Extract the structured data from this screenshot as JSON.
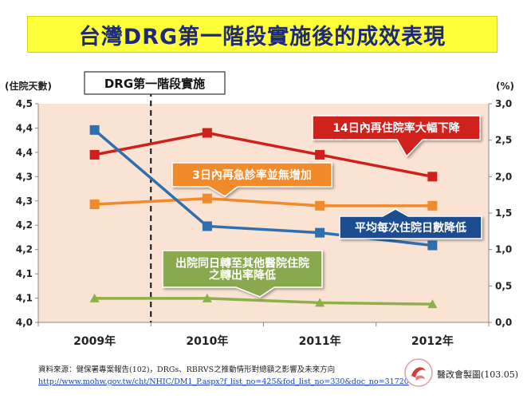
{
  "title": "台灣DRG第一階段實施後的成效表現",
  "annotation_drg": "DRG第一階段實施",
  "callouts": {
    "readmit14": "14日內再住院率大幅下降",
    "er3": "3日內再急診率並無增加",
    "los": "平均每次住院日數降低",
    "transfer_line1": "出院同日轉至其他醫院住院",
    "transfer_line2": "之轉出率降低"
  },
  "source": {
    "text": "資料來源：健保署專案報告(102)，DRGs、RBRVS之推動情形對總額之影響及未來方向",
    "url": "http://www.mohw.gov.tw/cht/NHIC/DM1_P.aspx?f_list_no=425&fod_list_no=330&doc_no=31720"
  },
  "credit": "醫改會製圖(103.05)",
  "chart_data": {
    "type": "line",
    "categories": [
      "2009年",
      "2010年",
      "2011年",
      "2012年"
    ],
    "left_axis": {
      "label": "(住院天數)",
      "ticks": [
        "4,0",
        "4,1",
        "4,1",
        "4,2",
        "4,2",
        "4,3",
        "4,3",
        "4,4",
        "4,4",
        "4,5"
      ],
      "ylim": [
        4.0,
        4.5
      ]
    },
    "right_axis": {
      "label": "(%)",
      "ticks": [
        "0,0",
        "0,5",
        "1,0",
        "1,5",
        "2,0",
        "2,5",
        "3,0"
      ],
      "ylim": [
        0,
        3.0
      ]
    },
    "series": [
      {
        "key": "readmit14",
        "axis": "right",
        "color": "#d0201c",
        "marker": "square",
        "values": [
          2.3,
          2.6,
          2.3,
          2.0
        ]
      },
      {
        "key": "er3",
        "axis": "right",
        "color": "#f08a2c",
        "marker": "square",
        "values": [
          1.62,
          1.7,
          1.6,
          1.6
        ]
      },
      {
        "key": "los",
        "axis": "left",
        "color": "#2e6fb0",
        "marker": "square",
        "values": [
          4.44,
          4.22,
          4.205,
          4.176
        ]
      },
      {
        "key": "transfer",
        "axis": "right",
        "color": "#8cb04a",
        "marker": "triangle",
        "values": [
          0.33,
          0.33,
          0.27,
          0.25
        ]
      }
    ],
    "drg_start_between": [
      "2009年",
      "2010年"
    ],
    "grid": false,
    "plot_background": "#fbe3d4"
  }
}
